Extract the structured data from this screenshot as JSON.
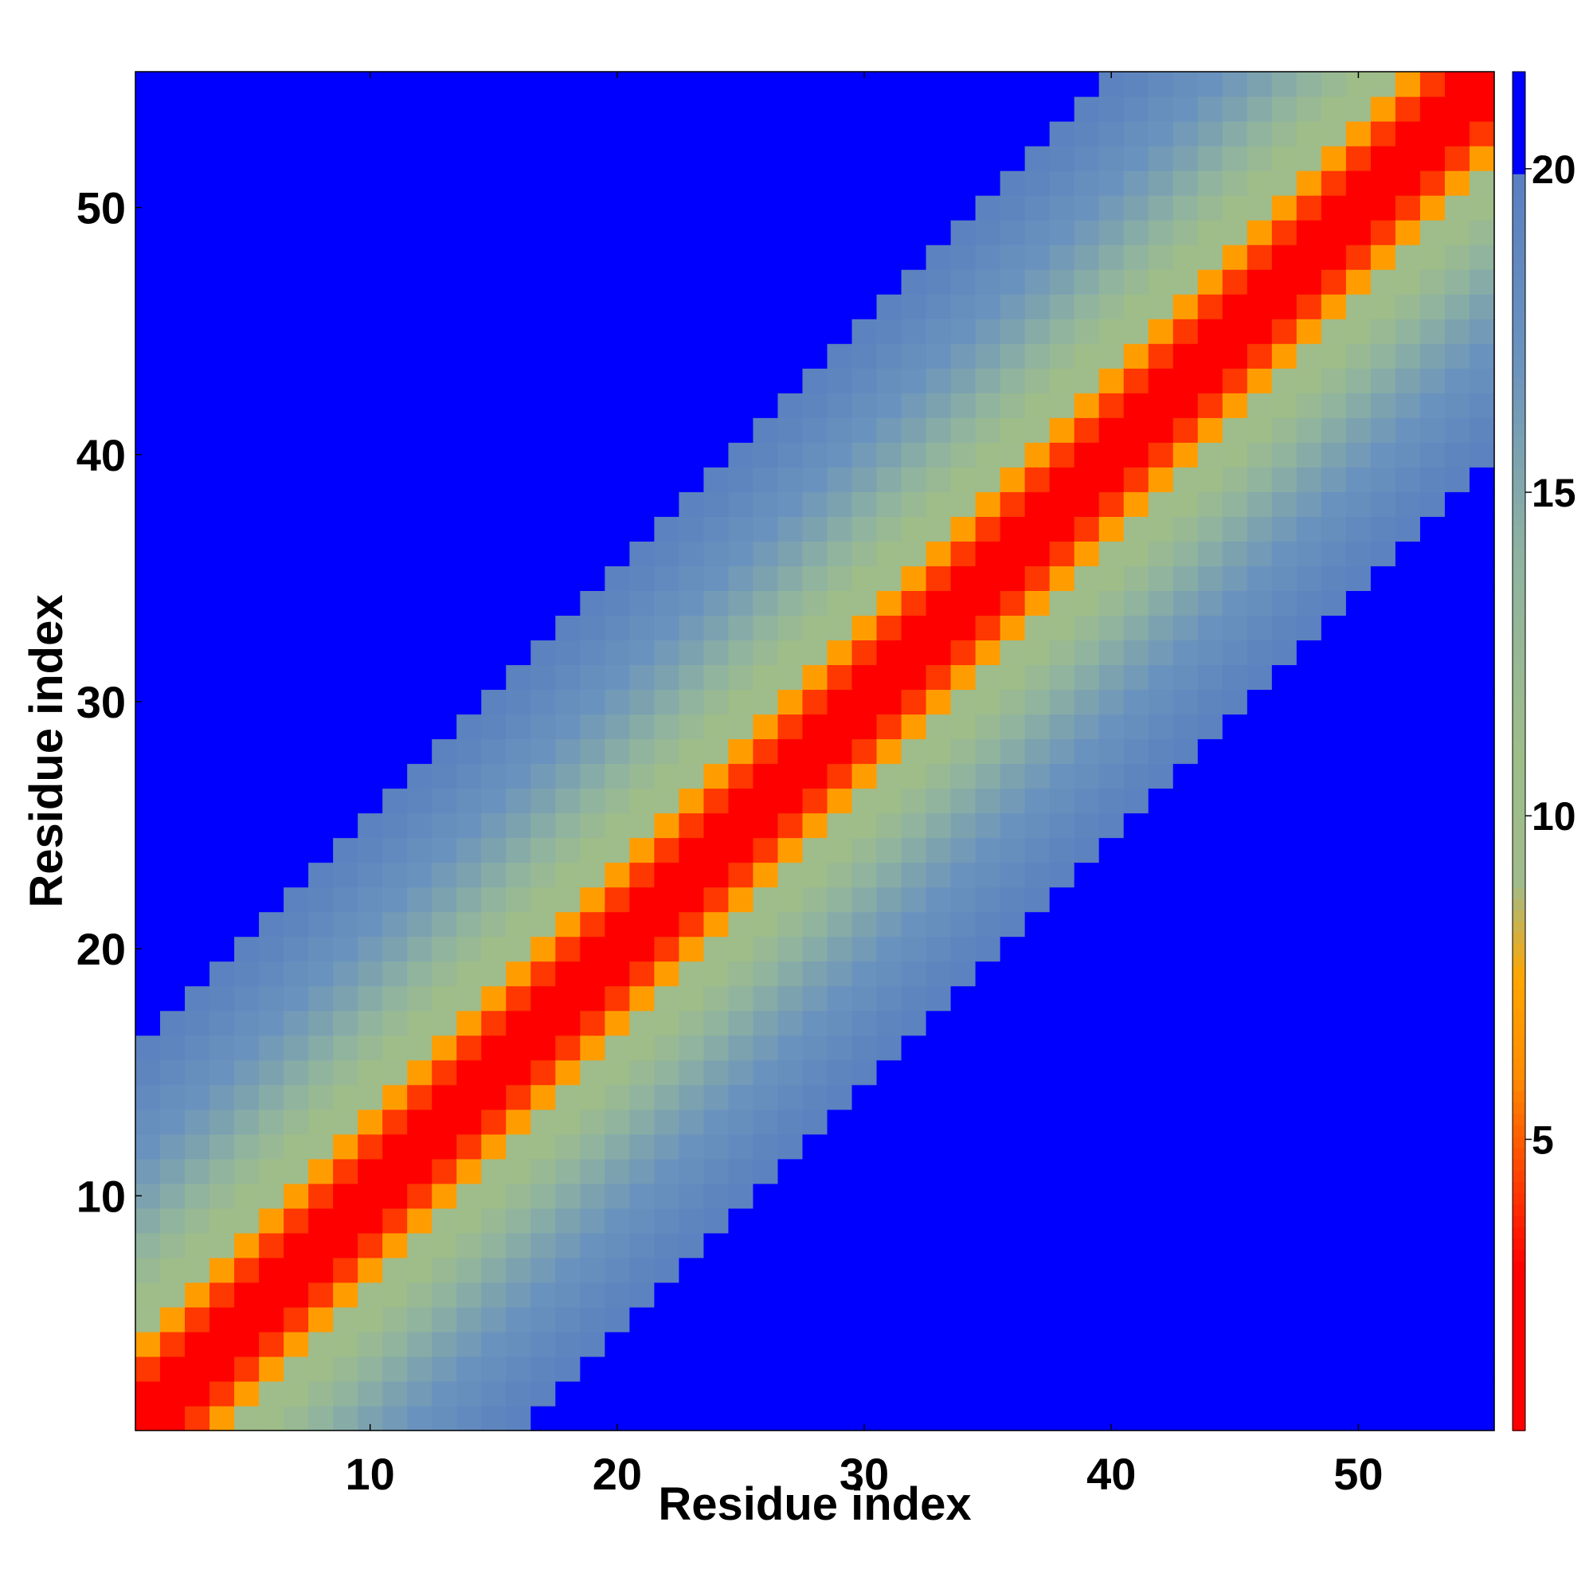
{
  "chart_data": {
    "type": "heatmap",
    "title": "",
    "xlabel": "Residue index",
    "ylabel": "Residue index",
    "n_residues": 55,
    "xlim": [
      0.5,
      55.5
    ],
    "ylim": [
      0.5,
      55.5
    ],
    "x_ticks": [
      10,
      20,
      30,
      40,
      50
    ],
    "y_ticks": [
      10,
      20,
      30,
      40,
      50
    ],
    "colorbar": {
      "ticks": [
        5,
        10,
        15,
        20
      ],
      "range": [
        0.5,
        21.5
      ],
      "scale": [
        {
          "value": 0.5,
          "color": "#ff0000"
        },
        {
          "value": 3.0,
          "color": "#ff0000"
        },
        {
          "value": 4.5,
          "color": "#ff4500"
        },
        {
          "value": 6.0,
          "color": "#ff8c00"
        },
        {
          "value": 7.5,
          "color": "#ffa500"
        },
        {
          "value": 9.0,
          "color": "#9fbc8c"
        },
        {
          "value": 11.0,
          "color": "#9ebd89"
        },
        {
          "value": 14.0,
          "color": "#8fb3a1"
        },
        {
          "value": 17.0,
          "color": "#6b93be"
        },
        {
          "value": 19.9,
          "color": "#5a80c0"
        },
        {
          "value": 20.0,
          "color": "#0000ff"
        },
        {
          "value": 21.5,
          "color": "#0000ff"
        }
      ]
    },
    "distance_matrix": [
      [
        1.2,
        2.3,
        4.2,
        7.0,
        9.4,
        10.9,
        12.2,
        13.6,
        14.7,
        15.6,
        16.3,
        17.1,
        17.6,
        18.4,
        19.1,
        19.6,
        20.9,
        21.4,
        21.5,
        21.5,
        21.5,
        21.5,
        21.5,
        21.5,
        21.5,
        21.5,
        21.5,
        21.5,
        21.5,
        21.5,
        21.5,
        21.5,
        21.5,
        21.5,
        21.5,
        21.5,
        21.5,
        21.5,
        21.5,
        21.5,
        21.5,
        21.5,
        21.5,
        21.5,
        21.5,
        21.5,
        21.5,
        21.5,
        21.5,
        21.5,
        21.5,
        21.5,
        21.5,
        21.5,
        21.5
      ]
    ]
  }
}
